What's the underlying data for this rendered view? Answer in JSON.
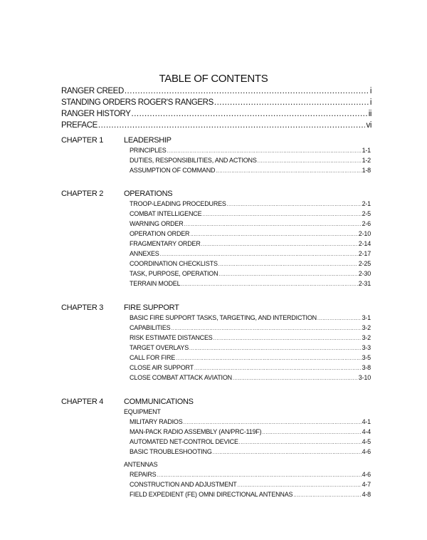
{
  "title": "TABLE OF CONTENTS",
  "front_matter": [
    {
      "label": "RANGER CREED",
      "page": "i"
    },
    {
      "label": "STANDING ORDERS ROGER'S RANGERS",
      "page": "i"
    },
    {
      "label": "RANGER HISTORY",
      "page": "ii"
    },
    {
      "label": "PREFACE",
      "page": "vi"
    }
  ],
  "chapters": [
    {
      "chapter": "CHAPTER 1",
      "title": "LEADERSHIP",
      "groups": [
        {
          "heading": "",
          "entries": [
            {
              "label": "PRINCIPLES",
              "page": "1-1"
            },
            {
              "label": "DUTIES, RESPONSIBILITIES, AND ACTIONS",
              "page": "1-2"
            },
            {
              "label": "ASSUMPTION OF COMMAND",
              "page": "1-8"
            }
          ]
        }
      ]
    },
    {
      "chapter": "CHAPTER 2",
      "title": "OPERATIONS",
      "groups": [
        {
          "heading": "",
          "entries": [
            {
              "label": "TROOP-LEADING PROCEDURES",
              "page": "2-1"
            },
            {
              "label": "COMBAT INTELLIGENCE",
              "page": "2-5"
            },
            {
              "label": "WARNING ORDER",
              "page": "2-6"
            },
            {
              "label": "OPERATION ORDER",
              "page": "2-10"
            },
            {
              "label": "FRAGMENTARY ORDER",
              "page": "2-14"
            },
            {
              "label": "ANNEXES",
              "page": "2-17"
            },
            {
              "label": "COORDINATION CHECKLISTS",
              "page": "2-25"
            },
            {
              "label": "TASK, PURPOSE, OPERATION",
              "page": "2-30"
            },
            {
              "label": "TERRAIN MODEL",
              "page": "2-31"
            }
          ]
        }
      ]
    },
    {
      "chapter": "CHAPTER 3",
      "title": "FIRE SUPPORT",
      "groups": [
        {
          "heading": "",
          "entries": [
            {
              "label": "BASIC FIRE SUPPORT TASKS, TARGETING, AND INTERDICTION",
              "page": "3-1"
            },
            {
              "label": "CAPABILITIES",
              "page": "3-2"
            },
            {
              "label": "RISK ESTIMATE DISTANCES",
              "page": "3-2"
            },
            {
              "label": "TARGET OVERLAYS",
              "page": "3-3"
            },
            {
              "label": "CALL FOR FIRE",
              "page": "3-5"
            },
            {
              "label": "CLOSE AIR SUPPORT",
              "page": "3-8"
            },
            {
              "label": "CLOSE COMBAT ATTACK AVIATION",
              "page": "3-10"
            }
          ]
        }
      ]
    },
    {
      "chapter": "CHAPTER 4",
      "title": "COMMUNICATIONS",
      "groups": [
        {
          "heading": "EQUIPMENT",
          "entries": [
            {
              "label": "MILITARY RADIOS",
              "page": "4-1"
            },
            {
              "label": "MAN-PACK RADIO ASSEMBLY (AN/PRC-119F)",
              "page": "4-4"
            },
            {
              "label": "AUTOMATED NET-CONTROL DEVICE",
              "page": "4-5"
            },
            {
              "label": "BASIC TROUBLESHOOTING",
              "page": "4-6"
            }
          ]
        },
        {
          "heading": "ANTENNAS",
          "entries": [
            {
              "label": "REPAIRS",
              "page": "4-6"
            },
            {
              "label": "CONSTRUCTION AND ADJUSTMENT",
              "page": "4-7"
            },
            {
              "label": "FIELD EXPEDIENT (FE) OMNI DIRECTIONAL ANTENNAS",
              "page": "4-8"
            }
          ]
        }
      ]
    }
  ]
}
